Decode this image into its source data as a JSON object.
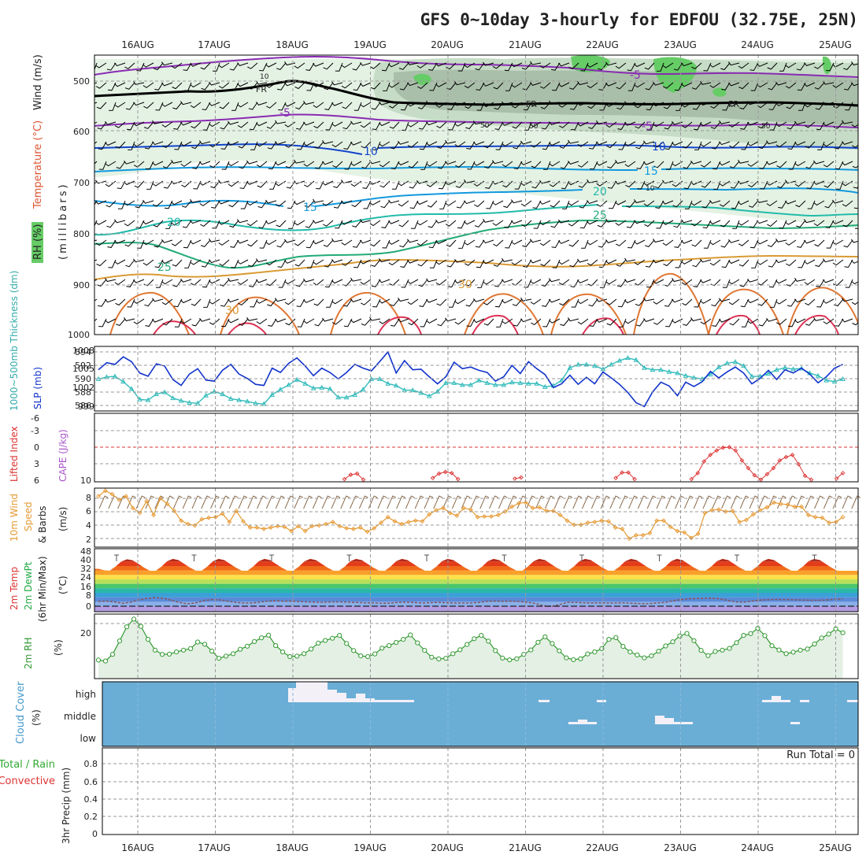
{
  "title": "GFS 0~10day 3-hourly for EDFOU (32.75E, 25N)",
  "date_labels": [
    "16AUG",
    "17AUG",
    "18AUG",
    "19AUG",
    "20AUG",
    "21AUG",
    "22AUG",
    "23AUG",
    "24AUG",
    "25AUG"
  ],
  "colors": {
    "rh_light": "#e4f2e4",
    "rh_mid": "#c6dcc6",
    "rh_dark": "#aabfaa",
    "rh_bright": "#66cc66",
    "frame": "#000000",
    "grid": "#999999",
    "slp": "#1133cc",
    "thick": "#33bbbb",
    "li": "#dd3333",
    "cape": "#aa55cc",
    "wind10": "#e69933",
    "rh2m": "#339933",
    "rh2m_fill": "#e4f0e4",
    "cloud_bg": "#6aaed6",
    "cloud_fill": "#f4f0f8",
    "precip_total": "#33aa33"
  },
  "panels": {
    "upper": {
      "label_wind": "Wind (m/s)",
      "label_temp": "Temperature (°C)",
      "label_rh": "RH (%)",
      "label_mb": "(millibars)",
      "ticks": [
        "500",
        "600",
        "700",
        "800",
        "900",
        "1000"
      ],
      "contour_labels": [
        "-5",
        "-5",
        "-5",
        "10",
        "10",
        "15",
        "15",
        "20",
        "20",
        "25",
        "25",
        "30",
        "30",
        "FR",
        "FR",
        "FR",
        "10",
        "50",
        "50",
        "50",
        "10"
      ]
    },
    "slp": {
      "label_thick": "1000~500mb Thickness (dm)",
      "label_slp": "SLP (mb)",
      "left_ticks": [
        "594",
        "592",
        "590",
        "588",
        "586"
      ],
      "right_ticks": [
        "1008",
        "1005",
        "1002",
        "999"
      ]
    },
    "li": {
      "label_li": "Lifted Index",
      "label_cape": "CAPE (J/kg)",
      "left_ticks": [
        "-6",
        "-3",
        "0",
        "3",
        "6"
      ],
      "right_ticks": [
        "10"
      ]
    },
    "wind10": {
      "label_a": "10m Wind",
      "label_b": "Speed",
      "label_c": "& Barbs",
      "unit": "(m/s)",
      "ticks": [
        "8",
        "6",
        "4",
        "2"
      ]
    },
    "temp2m": {
      "label_a": "2m Temp",
      "label_b": "2m DewPt",
      "label_c": "(6hr Min/Max)",
      "unit": "(°C)",
      "ticks": [
        "48",
        "40",
        "32",
        "24",
        "16",
        "8",
        "0"
      ]
    },
    "rh2m": {
      "label": "2m RH",
      "unit": "(%)",
      "ticks": [
        "20"
      ]
    },
    "cloud": {
      "label": "Cloud Cover",
      "unit": "(%)",
      "levels": [
        "high",
        "middle",
        "low"
      ]
    },
    "precip": {
      "label_a": "Total / Rain",
      "label_b": "Convective",
      "label_c": "3hr Precip (mm)",
      "ticks": [
        "0.8",
        "0.6",
        "0.4",
        "0.2",
        "0"
      ],
      "run_total": "Run Total = 0"
    }
  },
  "chart_data": [
    {
      "type": "line",
      "panel": "sea-level-pressure",
      "series": [
        {
          "name": "SLP (mb)",
          "values": [
            1004.9,
            1006.2,
            1005.9,
            1007.3,
            1006.4,
            1004.3,
            1003.7,
            1006.0,
            1005.6,
            1003.1,
            1002.0,
            1004.1,
            1005.1,
            1003.0,
            1002.8,
            1004.8,
            1005.9,
            1004.1,
            1003.3,
            1002.2,
            1002.0,
            1005.2,
            1004.4,
            1006.1,
            1007.1,
            1005.6,
            1003.8,
            1005.2,
            1004.4,
            1003.2,
            1004.4,
            1005.9,
            1005.2,
            1004.7,
            1006.4,
            1008.2,
            1004.3,
            1006.6,
            1004.9,
            1005.0,
            1003.6,
            1002.3,
            1003.6,
            1006.3,
            1005.1,
            1005.4,
            1004.8,
            1004.4,
            1002.8,
            1003.6,
            1005.7,
            1004.2,
            1006.4,
            1005.1,
            1004.0,
            1001.6,
            1002.3,
            1003.9,
            1002.2,
            1003.5,
            1002.3,
            1004.5,
            1003.4,
            1002.2,
            1000.7,
            998.8,
            998.1,
            1000.8,
            1002.6,
            1001.9,
            1000.1,
            1002.6,
            1001.8,
            1002.7,
            1004.6,
            1003.4,
            1004.5,
            1005.4,
            1004.3,
            1002.3,
            1003.3,
            1004.8,
            1003.1,
            1004.9,
            1004.3,
            1005.2,
            1004.1,
            1002.5,
            1003.6,
            1005.2,
            1005.9
          ]
        }
      ]
    },
    {
      "type": "line",
      "panel": "thickness",
      "series": [
        {
          "name": "1000-500mb Thickness (dm)",
          "values": [
            590.0,
            590.3,
            590.4,
            589.6,
            588.5,
            586.9,
            586.8,
            587.7,
            588.0,
            587.1,
            586.7,
            586.4,
            586.3,
            587.5,
            588.1,
            587.7,
            587.0,
            586.8,
            586.6,
            586.3,
            586.2,
            587.6,
            588.4,
            589.1,
            589.9,
            589.3,
            588.6,
            588.7,
            588.5,
            587.2,
            587.2,
            587.6,
            588.4,
            590.0,
            590.0,
            589.3,
            589.0,
            588.3,
            588.3,
            587.9,
            587.4,
            588.1,
            589.4,
            589.4,
            589.1,
            589.1,
            589.8,
            589.4,
            589.1,
            589.1,
            589.5,
            589.4,
            589.3,
            589.3,
            588.8,
            589.0,
            589.8,
            591.7,
            592.2,
            592.2,
            592.0,
            591.5,
            592.2,
            592.8,
            593.2,
            592.9,
            591.7,
            591.4,
            591.4,
            591.1,
            590.9,
            590.5,
            590.2,
            590.0,
            590.7,
            591.8,
            592.4,
            592.6,
            592.0,
            590.4,
            590.4,
            590.8,
            591.4,
            591.7,
            591.5,
            591.6,
            590.9,
            590.5,
            589.8,
            589.6,
            590.0
          ]
        }
      ]
    },
    {
      "type": "line",
      "panel": "lifted-index",
      "series": [
        {
          "name": "Lifted Index",
          "values": [
            null,
            null,
            null,
            null,
            null,
            null,
            null,
            null,
            null,
            null,
            null,
            null,
            null,
            null,
            null,
            null,
            null,
            null,
            null,
            null,
            null,
            null,
            null,
            null,
            null,
            null,
            null,
            null,
            null,
            null,
            null,
            null,
            null,
            null,
            null,
            null,
            null,
            null,
            null,
            5.8,
            5.0,
            4.8,
            5.9,
            null,
            null,
            null,
            null,
            null,
            null,
            null,
            null,
            null,
            null,
            5.6,
            4.8,
            4.5,
            4.7,
            5.8,
            null,
            null,
            null,
            null,
            null,
            null,
            null,
            null,
            5.7,
            5.5,
            null,
            null,
            null,
            null,
            null,
            null,
            null,
            null,
            null,
            null,
            null,
            null,
            null,
            null,
            5.6,
            4.6,
            4.6,
            5.8,
            null,
            null,
            null,
            null,
            null,
            null,
            null,
            null,
            5.8,
            4.7,
            2.6,
            1.4,
            0.6,
            0.1,
            0.0,
            0.6,
            2.4,
            3.8,
            5.1,
            5.9,
            4.9,
            3.8,
            2.4,
            1.8,
            1.4,
            3.1,
            5.2,
            5.9,
            null,
            null,
            null,
            5.7,
            4.7
          ]
        }
      ]
    },
    {
      "type": "line",
      "panel": "wind-10m",
      "series": [
        {
          "name": "10m Wind Speed (m/s)",
          "values": [
            8.3,
            9.1,
            8.6,
            7.8,
            8.3,
            6.6,
            5.9,
            7.6,
            5.6,
            8.0,
            7.2,
            6.2,
            4.8,
            4.3,
            4.1,
            5.0,
            5.2,
            5.3,
            5.8,
            4.6,
            6.2,
            4.7,
            3.8,
            3.8,
            3.6,
            3.8,
            4.0,
            3.9,
            3.3,
            4.0,
            3.3,
            4.0,
            4.1,
            4.3,
            4.6,
            4.0,
            3.7,
            3.6,
            3.8,
            3.2,
            3.7,
            4.5,
            5.3,
            4.7,
            4.3,
            4.6,
            4.8,
            4.7,
            5.7,
            6.3,
            6.6,
            5.9,
            5.5,
            6.6,
            6.4,
            5.3,
            5.4,
            5.4,
            5.6,
            6.1,
            6.8,
            7.3,
            7.4,
            6.6,
            6.7,
            6.2,
            6.2,
            5.6,
            4.8,
            4.2,
            4.2,
            4.5,
            4.6,
            4.8,
            4.7,
            3.8,
            3.6,
            2.2,
            2.7,
            2.7,
            3.0,
            4.8,
            4.8,
            3.9,
            3.3,
            3.1,
            2.3,
            2.9,
            5.9,
            6.3,
            6.4,
            6.1,
            6.2,
            4.6,
            4.9,
            5.7,
            6.3,
            6.7,
            7.4,
            7.2,
            7.1,
            6.8,
            6.8,
            5.6,
            5.3,
            5.2,
            4.5,
            4.6,
            5.3
          ]
        }
      ]
    },
    {
      "type": "area",
      "panel": "temp-2m",
      "series": [
        {
          "name": "2m Temp (°C)",
          "values": [
            33.5,
            32.3,
            32.0,
            35.6,
            40.1,
            42.1,
            41.1,
            37.9,
            34.5,
            31.8,
            31.8,
            35.5,
            40.3,
            42.4,
            41.3,
            38.0,
            34.6,
            32.0,
            31.8,
            35.5,
            40.3,
            42.4,
            41.3,
            38.0,
            34.6,
            32.0,
            31.8,
            35.5,
            40.3,
            42.4,
            41.3,
            38.0,
            34.6,
            32.0,
            31.8,
            35.5,
            40.3,
            42.4,
            41.3,
            38.0,
            34.6,
            32.0,
            31.8,
            35.5,
            40.3,
            42.4,
            41.3,
            38.0,
            34.6,
            32.0,
            31.8,
            35.5,
            40.3,
            42.4,
            41.3,
            38.0,
            34.6,
            32.0,
            31.8,
            35.5,
            40.3,
            42.4,
            41.3,
            38.0,
            34.6,
            32.0,
            31.8,
            35.5,
            40.3,
            42.4,
            41.3,
            38.0,
            34.6,
            32.0,
            31.8,
            35.5,
            40.3,
            42.4,
            41.3,
            38.0,
            34.6,
            32.0,
            31.8,
            35.5,
            40.3,
            42.4,
            41.3,
            38.0,
            34.6,
            32.0,
            31.8,
            35.5,
            40.3,
            42.4,
            41.3,
            38.0,
            34.6,
            32.0,
            31.8,
            35.5,
            40.3,
            42.4,
            41.3,
            38.0,
            34.6,
            32.0,
            31.8,
            35.5,
            40.3,
            42.4,
            41.3,
            38.0,
            34.6,
            32.0,
            31.8,
            35.5,
            40.3,
            42.4,
            41.3,
            38.0,
            34.6,
            32.0,
            31.8,
            35.5,
            40.3,
            42.4,
            41.3,
            38.0,
            34.6,
            32.0,
            31.8
          ]
        },
        {
          "name": "2m DewPt (°C)",
          "values": [
            4.3,
            4.6,
            3.9,
            2.6,
            3.6,
            5.8,
            6.9,
            7.8,
            7.2,
            5.4,
            3.4,
            2.1,
            2.9,
            4.9,
            6.0,
            5.7,
            4.5,
            3.4,
            2.8,
            2.9,
            3.7,
            4.6,
            4.8,
            4.5,
            4.5,
            4.1,
            3.8,
            3.6,
            3.6,
            3.9,
            3.8,
            3.6,
            3.3,
            3.0,
            3.0,
            2.6,
            2.7,
            3.4,
            3.7,
            3.3,
            2.8,
            3.2,
            3.4,
            3.1,
            2.9,
            2.9,
            2.9,
            3.3,
            4.4,
            4.6,
            4.4,
            4.5,
            4.2,
            3.5,
            2.5,
            0.5,
            -0.2,
            1.5,
            3.4,
            3.4,
            3.0,
            2.9,
            3.0,
            2.9,
            2.9,
            3.0,
            2.6,
            2.3,
            2.2,
            2.9,
            3.4,
            4.8,
            5.9,
            6.6,
            6.9,
            7.3,
            7.2,
            6.4,
            4.8,
            3.7,
            3.8,
            4.8,
            5.6,
            5.9,
            6.0,
            5.9,
            5.7,
            5.5,
            5.3,
            5.4,
            5.6,
            6.2,
            6.5
          ]
        }
      ]
    },
    {
      "type": "area",
      "panel": "rh-2m",
      "series": [
        {
          "name": "2m RH (%)",
          "values": [
            7.7,
            7.3,
            10.3,
            16.4,
            22.8,
            26.3,
            23.0,
            17.1,
            12.2,
            10.3,
            10.4,
            11.4,
            12.2,
            12.9,
            15.9,
            14.9,
            11.8,
            8.5,
            9.5,
            10.6,
            12.6,
            14.0,
            16.1,
            17.8,
            19.0,
            14.3,
            11.4,
            9.3,
            9.5,
            10.6,
            12.7,
            15.4,
            16.6,
            17.6,
            18.9,
            15.2,
            12.0,
            9.6,
            9.3,
            10.5,
            13.1,
            14.3,
            15.7,
            17.1,
            19.1,
            15.5,
            12.1,
            9.0,
            8.2,
            8.5,
            10.6,
            12.4,
            14.8,
            17.4,
            18.9,
            16.3,
            12.0,
            8.6,
            7.8,
            8.3,
            10.3,
            12.3,
            15.8,
            18.3,
            15.2,
            11.9,
            8.7,
            7.9,
            8.3,
            10.5,
            11.4,
            12.9,
            17.1,
            17.9,
            13.9,
            11.4,
            10.0,
            8.7,
            9.6,
            11.7,
            14.1,
            16.0,
            18.6,
            19.8,
            16.5,
            12.1,
            9.7,
            11.6,
            12.2,
            13.0,
            15.6,
            18.9,
            19.7,
            22.1,
            18.8,
            14.2,
            12.3,
            10.6,
            11.3,
            12.2,
            12.7,
            15.0,
            17.7,
            19.5,
            21.9,
            20.1
          ]
        }
      ]
    },
    {
      "type": "bar",
      "panel": "cloud-cover",
      "categories": [
        "high",
        "middle",
        "low"
      ],
      "note_total": "Run Total = 0"
    },
    {
      "type": "bar",
      "panel": "precip-3hr",
      "values": [],
      "ylim": [
        0,
        0.9
      ]
    }
  ]
}
